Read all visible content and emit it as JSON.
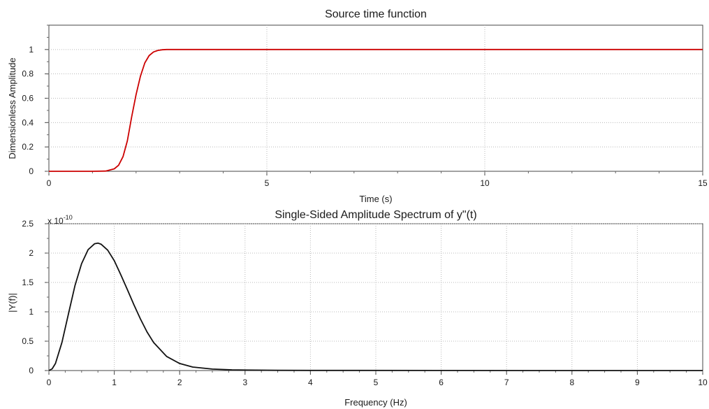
{
  "chart_data": [
    {
      "type": "line",
      "title": "Source time function",
      "xlabel": "Time (s)",
      "ylabel": "Dimensionless Amplitude",
      "xlim": [
        0,
        15
      ],
      "ylim": [
        0,
        1.2
      ],
      "xticks": [
        0,
        5,
        10,
        15
      ],
      "xtick_labels": [
        "0",
        "5",
        "10",
        "15"
      ],
      "yticks": [
        0,
        0.2,
        0.4,
        0.6,
        0.8,
        1
      ],
      "ytick_labels": [
        "0",
        "0.2",
        "0.4",
        "0.6",
        "0.8",
        "1"
      ],
      "grid": true,
      "color": "#cc0000",
      "series": [
        {
          "x": [
            0,
            1,
            1.3,
            1.5,
            1.6,
            1.7,
            1.8,
            1.9,
            2.0,
            2.1,
            2.2,
            2.3,
            2.4,
            2.5,
            2.6,
            2.7,
            2.8,
            3,
            5,
            10,
            15
          ],
          "values": [
            0,
            0,
            0.002,
            0.02,
            0.05,
            0.12,
            0.25,
            0.45,
            0.63,
            0.78,
            0.89,
            0.95,
            0.98,
            0.993,
            0.998,
            1,
            1,
            1,
            1,
            1,
            1
          ]
        }
      ]
    },
    {
      "type": "line",
      "title": "Single-Sided Amplitude Spectrum of y\"(t)",
      "xlabel": "Frequency (Hz)",
      "ylabel": "|Y(f)|",
      "scale_base": "x 10",
      "scale_exp": "-10",
      "xlim": [
        0,
        10
      ],
      "ylim": [
        0,
        2.5
      ],
      "xticks": [
        0,
        1,
        2,
        3,
        4,
        5,
        6,
        7,
        8,
        9,
        10
      ],
      "xtick_labels": [
        "0",
        "1",
        "2",
        "3",
        "4",
        "5",
        "6",
        "7",
        "8",
        "9",
        "10"
      ],
      "yticks": [
        0,
        0.5,
        1,
        1.5,
        2,
        2.5
      ],
      "ytick_labels": [
        "0",
        "0.5",
        "1",
        "1.5",
        "2",
        "2.5"
      ],
      "grid": true,
      "color": "#111111",
      "series": [
        {
          "x": [
            0,
            0.05,
            0.1,
            0.2,
            0.3,
            0.4,
            0.5,
            0.6,
            0.7,
            0.75,
            0.8,
            0.9,
            1.0,
            1.1,
            1.2,
            1.3,
            1.4,
            1.5,
            1.6,
            1.8,
            2.0,
            2.2,
            2.5,
            2.8,
            3.0,
            3.5,
            4,
            6,
            8,
            10
          ],
          "values": [
            0,
            0.03,
            0.12,
            0.48,
            0.97,
            1.45,
            1.82,
            2.06,
            2.16,
            2.17,
            2.15,
            2.05,
            1.87,
            1.63,
            1.38,
            1.12,
            0.88,
            0.66,
            0.48,
            0.24,
            0.12,
            0.06,
            0.025,
            0.012,
            0.008,
            0.004,
            0.002,
            0.001,
            0.0005,
            0.0003
          ]
        }
      ]
    }
  ]
}
